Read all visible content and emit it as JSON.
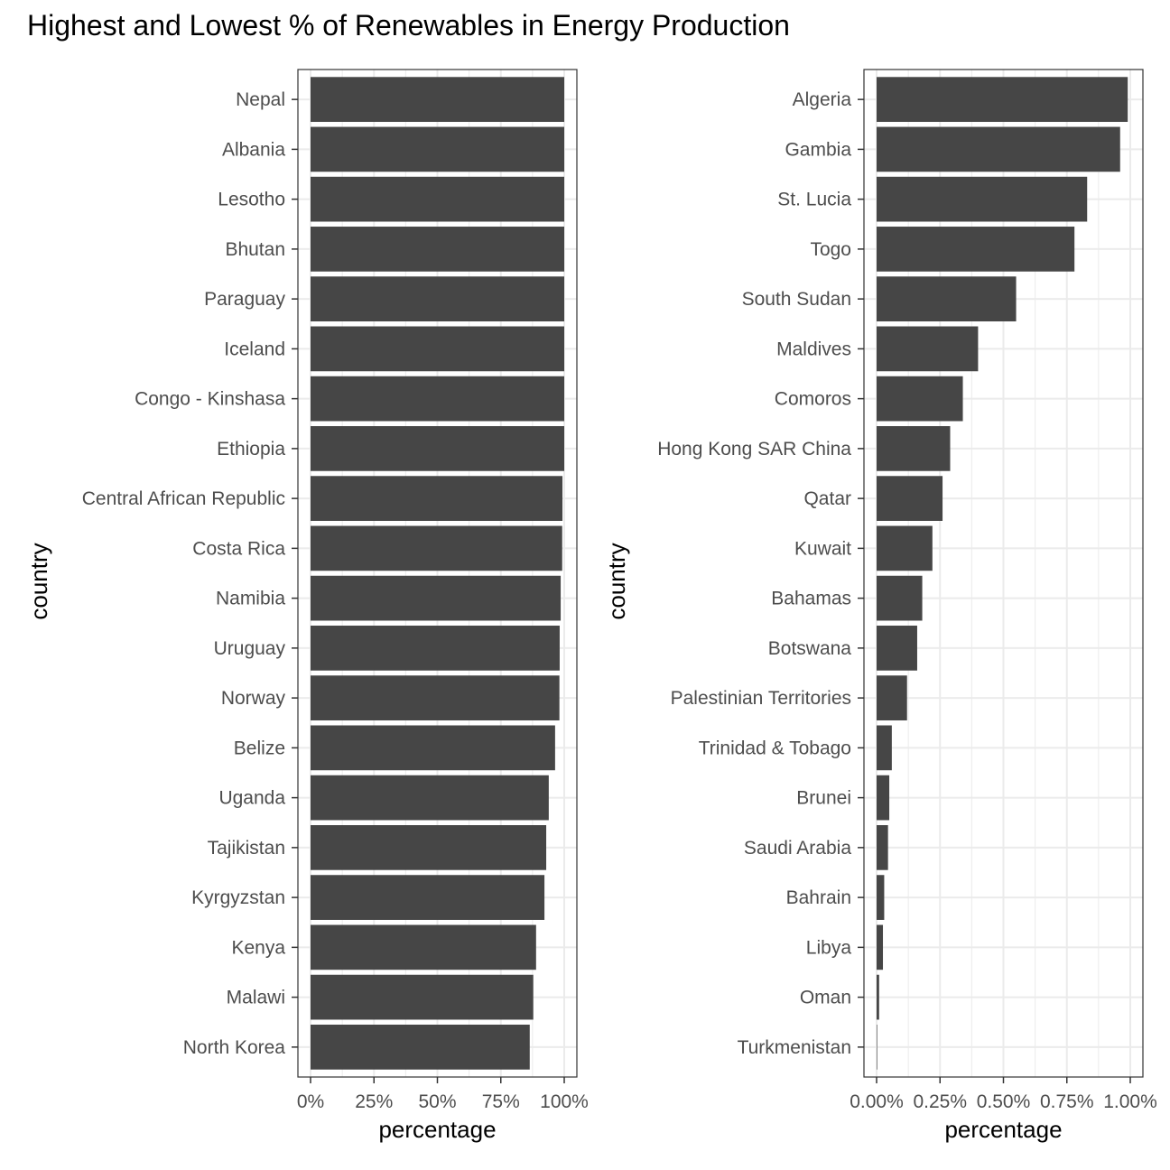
{
  "title": "Highest and Lowest % of Renewables in Energy Production",
  "chart_data": [
    {
      "type": "bar",
      "orientation": "horizontal",
      "xlabel": "percentage",
      "ylabel": "country",
      "xlim": [
        0,
        100
      ],
      "x_ticks": [
        0,
        25,
        50,
        75,
        100
      ],
      "x_tick_labels": [
        "0%",
        "25%",
        "50%",
        "75%",
        "100%"
      ],
      "grid": true,
      "bar_color": "#464646",
      "categories": [
        "Nepal",
        "Albania",
        "Lesotho",
        "Bhutan",
        "Paraguay",
        "Iceland",
        "Congo - Kinshasa",
        "Ethiopia",
        "Central African Republic",
        "Costa Rica",
        "Namibia",
        "Uruguay",
        "Norway",
        "Belize",
        "Uganda",
        "Tajikistan",
        "Kyrgyzstan",
        "Kenya",
        "Malawi",
        "North Korea"
      ],
      "values": [
        100,
        100,
        100,
        100,
        100,
        100,
        100,
        100,
        99.3,
        99.2,
        98.6,
        98.2,
        98.1,
        96.4,
        93.9,
        92.9,
        92.2,
        88.9,
        87.8,
        86.4
      ]
    },
    {
      "type": "bar",
      "orientation": "horizontal",
      "xlabel": "percentage",
      "ylabel": "country",
      "xlim": [
        0,
        1
      ],
      "x_ticks": [
        0,
        0.25,
        0.5,
        0.75,
        1
      ],
      "x_tick_labels": [
        "0.00%",
        "0.25%",
        "0.50%",
        "0.75%",
        "1.00%"
      ],
      "grid": true,
      "bar_color": "#464646",
      "categories": [
        "Algeria",
        "Gambia",
        "St. Lucia",
        "Togo",
        "South Sudan",
        "Maldives",
        "Comoros",
        "Hong Kong SAR China",
        "Qatar",
        "Kuwait",
        "Bahamas",
        "Botswana",
        "Palestinian Territories",
        "Trinidad & Tobago",
        "Brunei",
        "Saudi Arabia",
        "Bahrain",
        "Libya",
        "Oman",
        "Turkmenistan"
      ],
      "values": [
        0.99,
        0.96,
        0.83,
        0.78,
        0.55,
        0.4,
        0.34,
        0.29,
        0.26,
        0.22,
        0.18,
        0.16,
        0.12,
        0.06,
        0.05,
        0.045,
        0.03,
        0.025,
        0.01,
        0.002
      ]
    }
  ]
}
